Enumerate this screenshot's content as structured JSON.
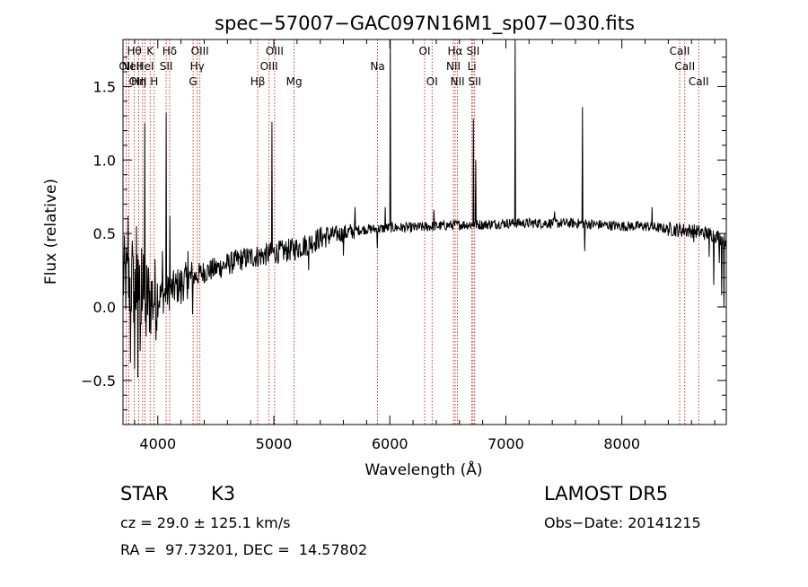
{
  "chart_data": {
    "type": "line",
    "title": "spec−57007−GAC097N16M1_sp07−030.fits",
    "xlabel": "Wavelength (Å)",
    "ylabel": "Flux (relative)",
    "xlim": [
      3700,
      8900
    ],
    "ylim": [
      -0.8,
      1.82
    ],
    "xticks": [
      {
        "value": 4000,
        "label": "4000"
      },
      {
        "value": 5000,
        "label": "5000"
      },
      {
        "value": 6000,
        "label": "6000"
      },
      {
        "value": 7000,
        "label": "7000"
      },
      {
        "value": 8000,
        "label": "8000"
      }
    ],
    "yticks": [
      {
        "value": -0.5,
        "label": "−0.5"
      },
      {
        "value": 0.0,
        "label": "0.0"
      },
      {
        "value": 0.5,
        "label": "0.5"
      },
      {
        "value": 1.0,
        "label": "1.0"
      },
      {
        "value": 1.5,
        "label": "1.5"
      }
    ],
    "grid": false,
    "line_color": "#000000",
    "marker_color": "#cc0000",
    "lines": [
      {
        "x": 3728,
        "label": "OII",
        "row": 1,
        "anchor": "middle"
      },
      {
        "x": 3750,
        "label": "OIII",
        "row": 2,
        "anchor": "start"
      },
      {
        "x": 3798,
        "label": "Hθ",
        "row": 0,
        "anchor": "middle"
      },
      {
        "x": 3835,
        "label": "Hη",
        "row": 2,
        "anchor": "middle"
      },
      {
        "x": 3869,
        "label": "NeII",
        "row": 1,
        "anchor": "end"
      },
      {
        "x": 3889,
        "label": "HeI",
        "row": 1,
        "anchor": "middle"
      },
      {
        "x": 3934,
        "label": "K",
        "row": 0,
        "anchor": "middle"
      },
      {
        "x": 3969,
        "label": "H",
        "row": 2,
        "anchor": "middle"
      },
      {
        "x": 4072,
        "label": "SII",
        "row": 1,
        "anchor": "middle"
      },
      {
        "x": 4102,
        "label": "Hδ",
        "row": 0,
        "anchor": "middle"
      },
      {
        "x": 4304,
        "label": "G",
        "row": 2,
        "anchor": "middle"
      },
      {
        "x": 4340,
        "label": "Hγ",
        "row": 1,
        "anchor": "middle"
      },
      {
        "x": 4363,
        "label": "OIII",
        "row": 0,
        "anchor": "middle"
      },
      {
        "x": 4861,
        "label": "Hβ",
        "row": 2,
        "anchor": "middle"
      },
      {
        "x": 4959,
        "label": "OIII",
        "row": 1,
        "anchor": "middle"
      },
      {
        "x": 5007,
        "label": "OIII",
        "row": 0,
        "anchor": "middle"
      },
      {
        "x": 5175,
        "label": "Mg",
        "row": 2,
        "anchor": "middle"
      },
      {
        "x": 5894,
        "label": "Na",
        "row": 1,
        "anchor": "middle"
      },
      {
        "x": 6300,
        "label": "OI",
        "row": 0,
        "anchor": "middle"
      },
      {
        "x": 6364,
        "label": "OI",
        "row": 2,
        "anchor": "middle"
      },
      {
        "x": 6548,
        "label": "NII",
        "row": 1,
        "anchor": "middle"
      },
      {
        "x": 6563,
        "label": "Hα",
        "row": 0,
        "anchor": "middle"
      },
      {
        "x": 6583,
        "label": "NII",
        "row": 2,
        "anchor": "middle"
      },
      {
        "x": 6707,
        "label": "Li",
        "row": 1,
        "anchor": "middle"
      },
      {
        "x": 6717,
        "label": "SII",
        "row": 0,
        "anchor": "middle"
      },
      {
        "x": 6731,
        "label": "SII",
        "row": 2,
        "anchor": "middle"
      },
      {
        "x": 8498,
        "label": "CaII",
        "row": 0,
        "anchor": "middle"
      },
      {
        "x": 8542,
        "label": "CaII",
        "row": 1,
        "anchor": "middle"
      },
      {
        "x": 8662,
        "label": "CaII",
        "row": 2,
        "anchor": "middle"
      }
    ],
    "spikes": [
      {
        "x": 3745,
        "y": 0.62
      },
      {
        "x": 3762,
        "y": -0.38
      },
      {
        "x": 3780,
        "y": 0.45
      },
      {
        "x": 3800,
        "y": -0.42
      },
      {
        "x": 3815,
        "y": 0.55
      },
      {
        "x": 3828,
        "y": -0.48
      },
      {
        "x": 3846,
        "y": -0.3
      },
      {
        "x": 3860,
        "y": 0.4
      },
      {
        "x": 3889,
        "y": 1.25
      },
      {
        "x": 3900,
        "y": -0.2
      },
      {
        "x": 3934,
        "y": -0.12
      },
      {
        "x": 3969,
        "y": 0.02
      },
      {
        "x": 4040,
        "y": 0.38
      },
      {
        "x": 4071,
        "y": 1.32
      },
      {
        "x": 4102,
        "y": 0.62
      },
      {
        "x": 4200,
        "y": 0.02
      },
      {
        "x": 4260,
        "y": 0.38
      },
      {
        "x": 4300,
        "y": -0.05
      },
      {
        "x": 4985,
        "y": 1.26
      },
      {
        "x": 5300,
        "y": 0.25
      },
      {
        "x": 5600,
        "y": 0.35
      },
      {
        "x": 5700,
        "y": 0.68
      },
      {
        "x": 5890,
        "y": 0.4
      },
      {
        "x": 5960,
        "y": 0.68
      },
      {
        "x": 6004,
        "y": 1.82
      },
      {
        "x": 6380,
        "y": 0.66
      },
      {
        "x": 6720,
        "y": 1.28
      },
      {
        "x": 6740,
        "y": 1.0
      },
      {
        "x": 7078,
        "y": 1.82
      },
      {
        "x": 7420,
        "y": 0.65
      },
      {
        "x": 7660,
        "y": 1.36
      },
      {
        "x": 7680,
        "y": 0.38
      },
      {
        "x": 8260,
        "y": 0.68
      },
      {
        "x": 8620,
        "y": 0.44
      },
      {
        "x": 8750,
        "y": 0.34
      },
      {
        "x": 8790,
        "y": 0.15
      },
      {
        "x": 8840,
        "y": 0.3
      },
      {
        "x": 8860,
        "y": 0.08
      },
      {
        "x": 8880,
        "y": 0.0
      }
    ],
    "continuum": [
      {
        "x": 3700,
        "y": 0.2
      },
      {
        "x": 3800,
        "y": 0.12
      },
      {
        "x": 3900,
        "y": 0.06
      },
      {
        "x": 4000,
        "y": 0.06
      },
      {
        "x": 4100,
        "y": 0.1
      },
      {
        "x": 4200,
        "y": 0.16
      },
      {
        "x": 4300,
        "y": 0.2
      },
      {
        "x": 4400,
        "y": 0.24
      },
      {
        "x": 4500,
        "y": 0.26
      },
      {
        "x": 4600,
        "y": 0.29
      },
      {
        "x": 4700,
        "y": 0.32
      },
      {
        "x": 4800,
        "y": 0.34
      },
      {
        "x": 4900,
        "y": 0.35
      },
      {
        "x": 5000,
        "y": 0.37
      },
      {
        "x": 5100,
        "y": 0.38
      },
      {
        "x": 5200,
        "y": 0.4
      },
      {
        "x": 5300,
        "y": 0.43
      },
      {
        "x": 5400,
        "y": 0.47
      },
      {
        "x": 5500,
        "y": 0.49
      },
      {
        "x": 5600,
        "y": 0.5
      },
      {
        "x": 5700,
        "y": 0.52
      },
      {
        "x": 5800,
        "y": 0.53
      },
      {
        "x": 5900,
        "y": 0.53
      },
      {
        "x": 6000,
        "y": 0.54
      },
      {
        "x": 6200,
        "y": 0.54
      },
      {
        "x": 6400,
        "y": 0.55
      },
      {
        "x": 6600,
        "y": 0.56
      },
      {
        "x": 6800,
        "y": 0.56
      },
      {
        "x": 7000,
        "y": 0.57
      },
      {
        "x": 7200,
        "y": 0.57
      },
      {
        "x": 7400,
        "y": 0.57
      },
      {
        "x": 7600,
        "y": 0.57
      },
      {
        "x": 7800,
        "y": 0.56
      },
      {
        "x": 8000,
        "y": 0.55
      },
      {
        "x": 8200,
        "y": 0.55
      },
      {
        "x": 8400,
        "y": 0.53
      },
      {
        "x": 8600,
        "y": 0.52
      },
      {
        "x": 8800,
        "y": 0.49
      },
      {
        "x": 8900,
        "y": 0.45
      }
    ]
  },
  "info": {
    "object_class": "STAR",
    "subclass": "K3",
    "survey": "LAMOST DR5",
    "cz": "cz = 29.0 ± 125.1 km/s",
    "obs_date": "Obs−Date: 20141215",
    "radec": "RA =  97.73201, DEC =  14.57802"
  }
}
